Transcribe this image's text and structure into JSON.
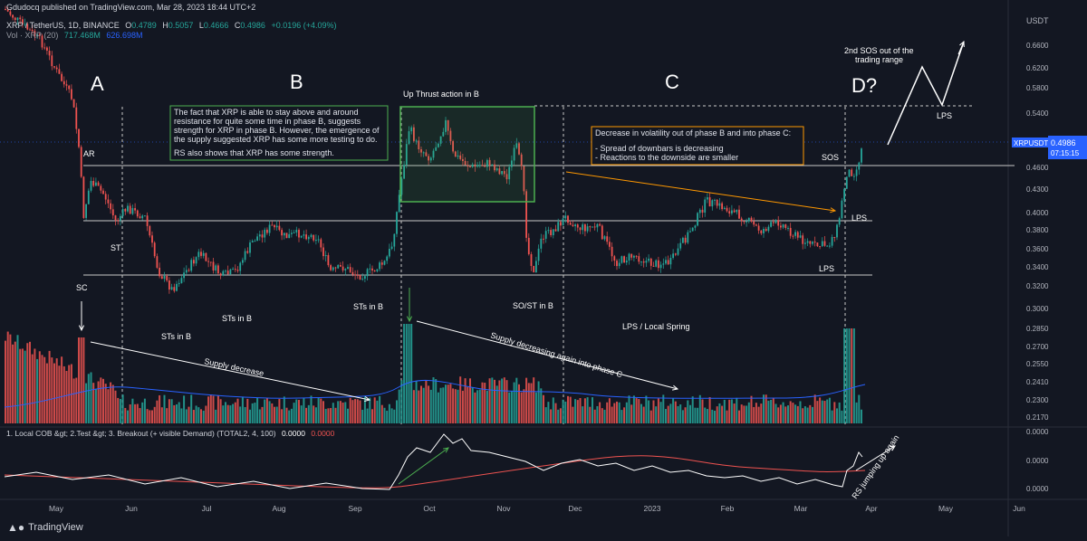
{
  "header": {
    "published": "Gdudocq published on TradingView.com, Mar 28, 2023 18:44 UTC+2",
    "symbol": "XRP / TetherUS, 1D, BINANCE",
    "o_label": "O",
    "o": "0.4789",
    "h_label": "H",
    "h": "0.5057",
    "l_label": "L",
    "l": "0.4666",
    "c_label": "C",
    "c": "0.4986",
    "change": "+0.0196 (+4.09%)",
    "vol_label": "Vol · XRP (20)",
    "vol_v1": "717.468M",
    "vol_v2": "626.698M"
  },
  "currency": "USDT",
  "price_badge": {
    "symbol": "XRPUSDT",
    "price": "0.4986",
    "countdown": "07:15:15"
  },
  "price_axis": [
    "0.6600",
    "0.6200",
    "0.5800",
    "0.5400",
    "0.5000",
    "0.4600",
    "0.4300",
    "0.4000",
    "0.3800",
    "0.3600",
    "0.3400",
    "0.3200",
    "0.3000",
    "0.2850",
    "0.2700",
    "0.2550",
    "0.2410",
    "0.2300",
    "0.2170"
  ],
  "ind_axis": [
    "0.0000",
    "0.0000",
    "0.0000"
  ],
  "months": [
    "May",
    "Jun",
    "Jul",
    "Aug",
    "Sep",
    "Oct",
    "Nov",
    "Dec",
    "2023",
    "Feb",
    "Mar",
    "Apr",
    "May",
    "Jun"
  ],
  "indicator": {
    "title": "1. Local COB &gt; 2.Test &gt; 3. Breakout (+ visible Demand) (TOTAL2, 4, 100)",
    "v1": "0.0000",
    "v2": "0.0000"
  },
  "annotations": {
    "phase_a": "A",
    "phase_b": "B",
    "phase_c": "C",
    "phase_d": "D?",
    "ar": "AR",
    "sc": "SC",
    "st": "ST",
    "sts_1": "STs in B",
    "sts_2": "STs in B",
    "sts_3": "STs in B",
    "upthrust": "Up Thrust action in B",
    "so_st": "SO/ST in B",
    "lps_spring": "LPS / Local Spring",
    "sos": "SOS",
    "lps_1": "LPS",
    "lps_2": "LPS",
    "lps_3": "LPS",
    "sos2_line1": "2nd SOS out of the",
    "sos2_line2": "trading range",
    "supply_decrease": "Supply decrease",
    "supply_decrease_c": "Supply decreasing again into phase C",
    "rs_up": "RS jumping up again",
    "box_b": [
      "The fact that XRP is able to stay above and around",
      "resistance for quite some time in phase B, suggests",
      "strength for XRP in phase B. However, the emergence of",
      "the supply suggested XRP has some more testing to do.",
      "",
      "RS also shows that XRP has some strength."
    ],
    "box_c": [
      "Decrease in volatility out of phase B and into phase C:",
      "",
      "- Spread of downbars is decreasing",
      "- Reactions to the downside are smaller"
    ]
  },
  "branding": "TradingView",
  "colors": {
    "up": "#26a69a",
    "down": "#ef5350",
    "bg": "#131722",
    "grid": "#2a2e39",
    "badge": "#2962ff",
    "box_green": "#4caf50",
    "box_orange": "#ff9800"
  },
  "chart_data": {
    "type": "candlestick",
    "xlabel": "",
    "ylabel": "",
    "x_range": [
      "2022-04-27",
      "2023-06-10"
    ],
    "y_range": [
      0.29,
      0.69
    ],
    "trading_range": {
      "ar_level": 0.465,
      "mid_level": 0.395,
      "support": 0.338,
      "resistance_dotted": 0.56
    },
    "current": {
      "open": 0.4789,
      "high": 0.5057,
      "low": 0.4666,
      "close": 0.4986,
      "change": 0.0196,
      "change_pct": 4.09
    },
    "volume": {
      "last": "717.468M",
      "ma20": "626.698M"
    }
  }
}
